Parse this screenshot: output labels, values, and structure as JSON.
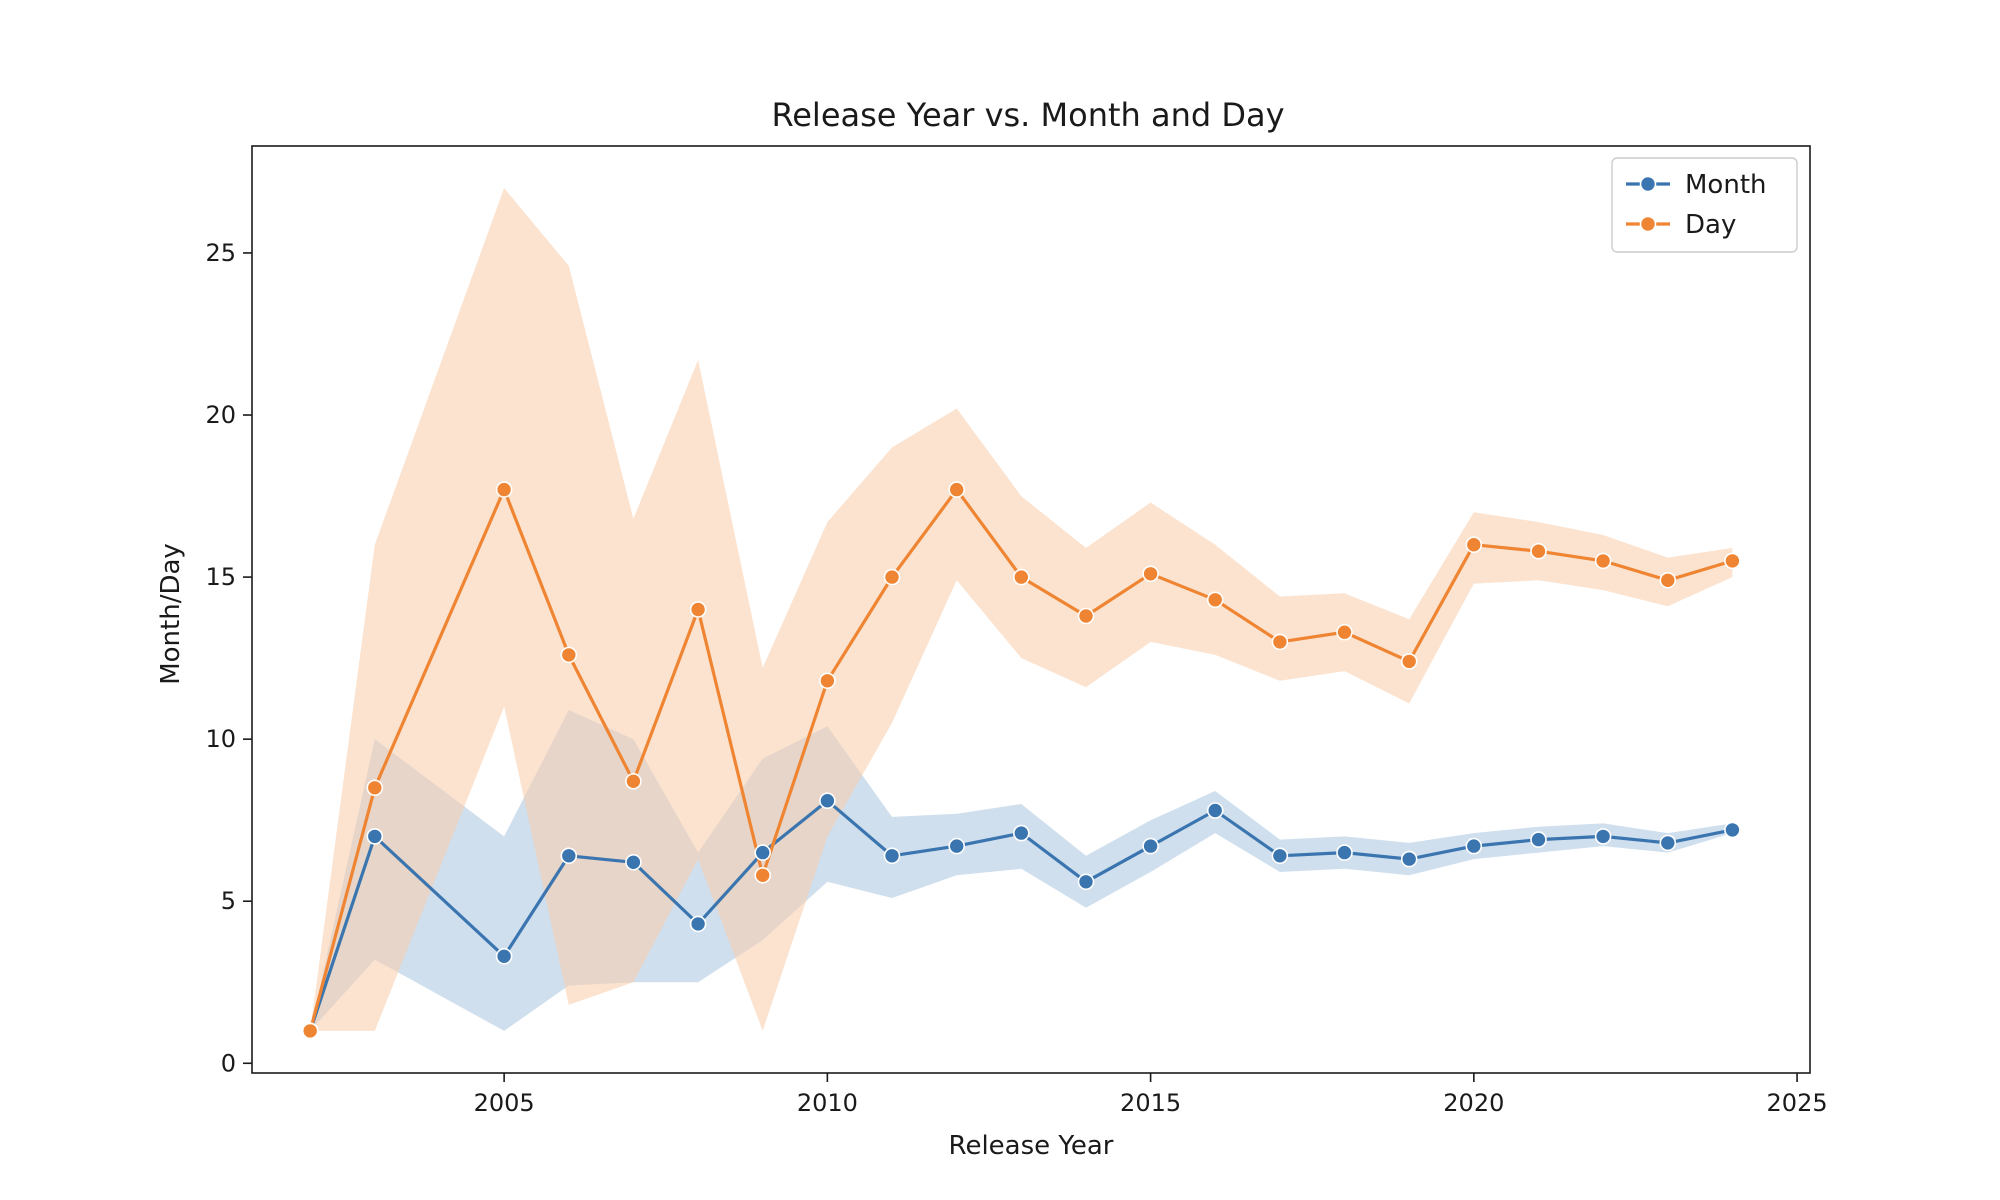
{
  "chart_data": {
    "type": "line",
    "title": "Release Year vs. Month and Day",
    "xlabel": "Release Year",
    "ylabel": "Month/Day",
    "xlim": [
      2001.1,
      2025.2
    ],
    "ylim": [
      -0.3,
      28.3
    ],
    "xticks": [
      2005,
      2010,
      2015,
      2020,
      2025
    ],
    "yticks": [
      0,
      5,
      10,
      15,
      20,
      25
    ],
    "grid": false,
    "legend_position": "top-right",
    "series": [
      {
        "name": "Month",
        "color": "#3b75af",
        "band_color": "#a9c4e0",
        "marker": "circle",
        "x": [
          2002,
          2003,
          2005,
          2006,
          2007,
          2008,
          2009,
          2010,
          2011,
          2012,
          2013,
          2014,
          2015,
          2016,
          2017,
          2018,
          2019,
          2020,
          2021,
          2022,
          2023,
          2024
        ],
        "y": [
          1.0,
          7.0,
          3.3,
          6.4,
          6.2,
          4.3,
          6.5,
          8.1,
          6.4,
          6.7,
          7.1,
          5.6,
          6.7,
          7.8,
          6.4,
          6.5,
          6.3,
          6.7,
          6.9,
          7.0,
          6.8,
          7.2
        ],
        "ci_lower": [
          1.0,
          3.2,
          1.0,
          2.4,
          2.5,
          2.5,
          3.8,
          5.6,
          5.1,
          5.8,
          6.0,
          4.8,
          5.9,
          7.1,
          5.9,
          6.0,
          5.8,
          6.3,
          6.5,
          6.7,
          6.5,
          7.1
        ],
        "ci_upper": [
          1.0,
          10.0,
          7.0,
          10.9,
          10.0,
          6.5,
          9.4,
          10.4,
          7.6,
          7.7,
          8.0,
          6.4,
          7.5,
          8.4,
          6.9,
          7.0,
          6.8,
          7.1,
          7.3,
          7.4,
          7.1,
          7.4
        ]
      },
      {
        "name": "Day",
        "color": "#ef8532",
        "band_color": "#f7ccaa",
        "marker": "circle",
        "x": [
          2002,
          2003,
          2005,
          2006,
          2007,
          2008,
          2009,
          2010,
          2011,
          2012,
          2013,
          2014,
          2015,
          2016,
          2017,
          2018,
          2019,
          2020,
          2021,
          2022,
          2023,
          2024
        ],
        "y": [
          1.0,
          8.5,
          17.7,
          12.6,
          8.7,
          14.0,
          5.8,
          11.8,
          15.0,
          17.7,
          15.0,
          13.8,
          15.1,
          14.3,
          13.0,
          13.3,
          12.4,
          16.0,
          15.8,
          15.5,
          14.9,
          15.5
        ],
        "ci_lower": [
          1.0,
          1.0,
          11.0,
          1.8,
          2.5,
          6.3,
          1.0,
          7.0,
          10.5,
          14.9,
          12.5,
          11.6,
          13.0,
          12.6,
          11.8,
          12.1,
          11.1,
          14.8,
          14.9,
          14.6,
          14.1,
          15.0
        ],
        "ci_upper": [
          1.0,
          16.0,
          27.0,
          24.6,
          16.8,
          21.7,
          12.2,
          16.7,
          19.0,
          20.2,
          17.5,
          15.9,
          17.3,
          16.0,
          14.4,
          14.5,
          13.7,
          17.0,
          16.7,
          16.3,
          15.6,
          15.9
        ]
      }
    ]
  }
}
